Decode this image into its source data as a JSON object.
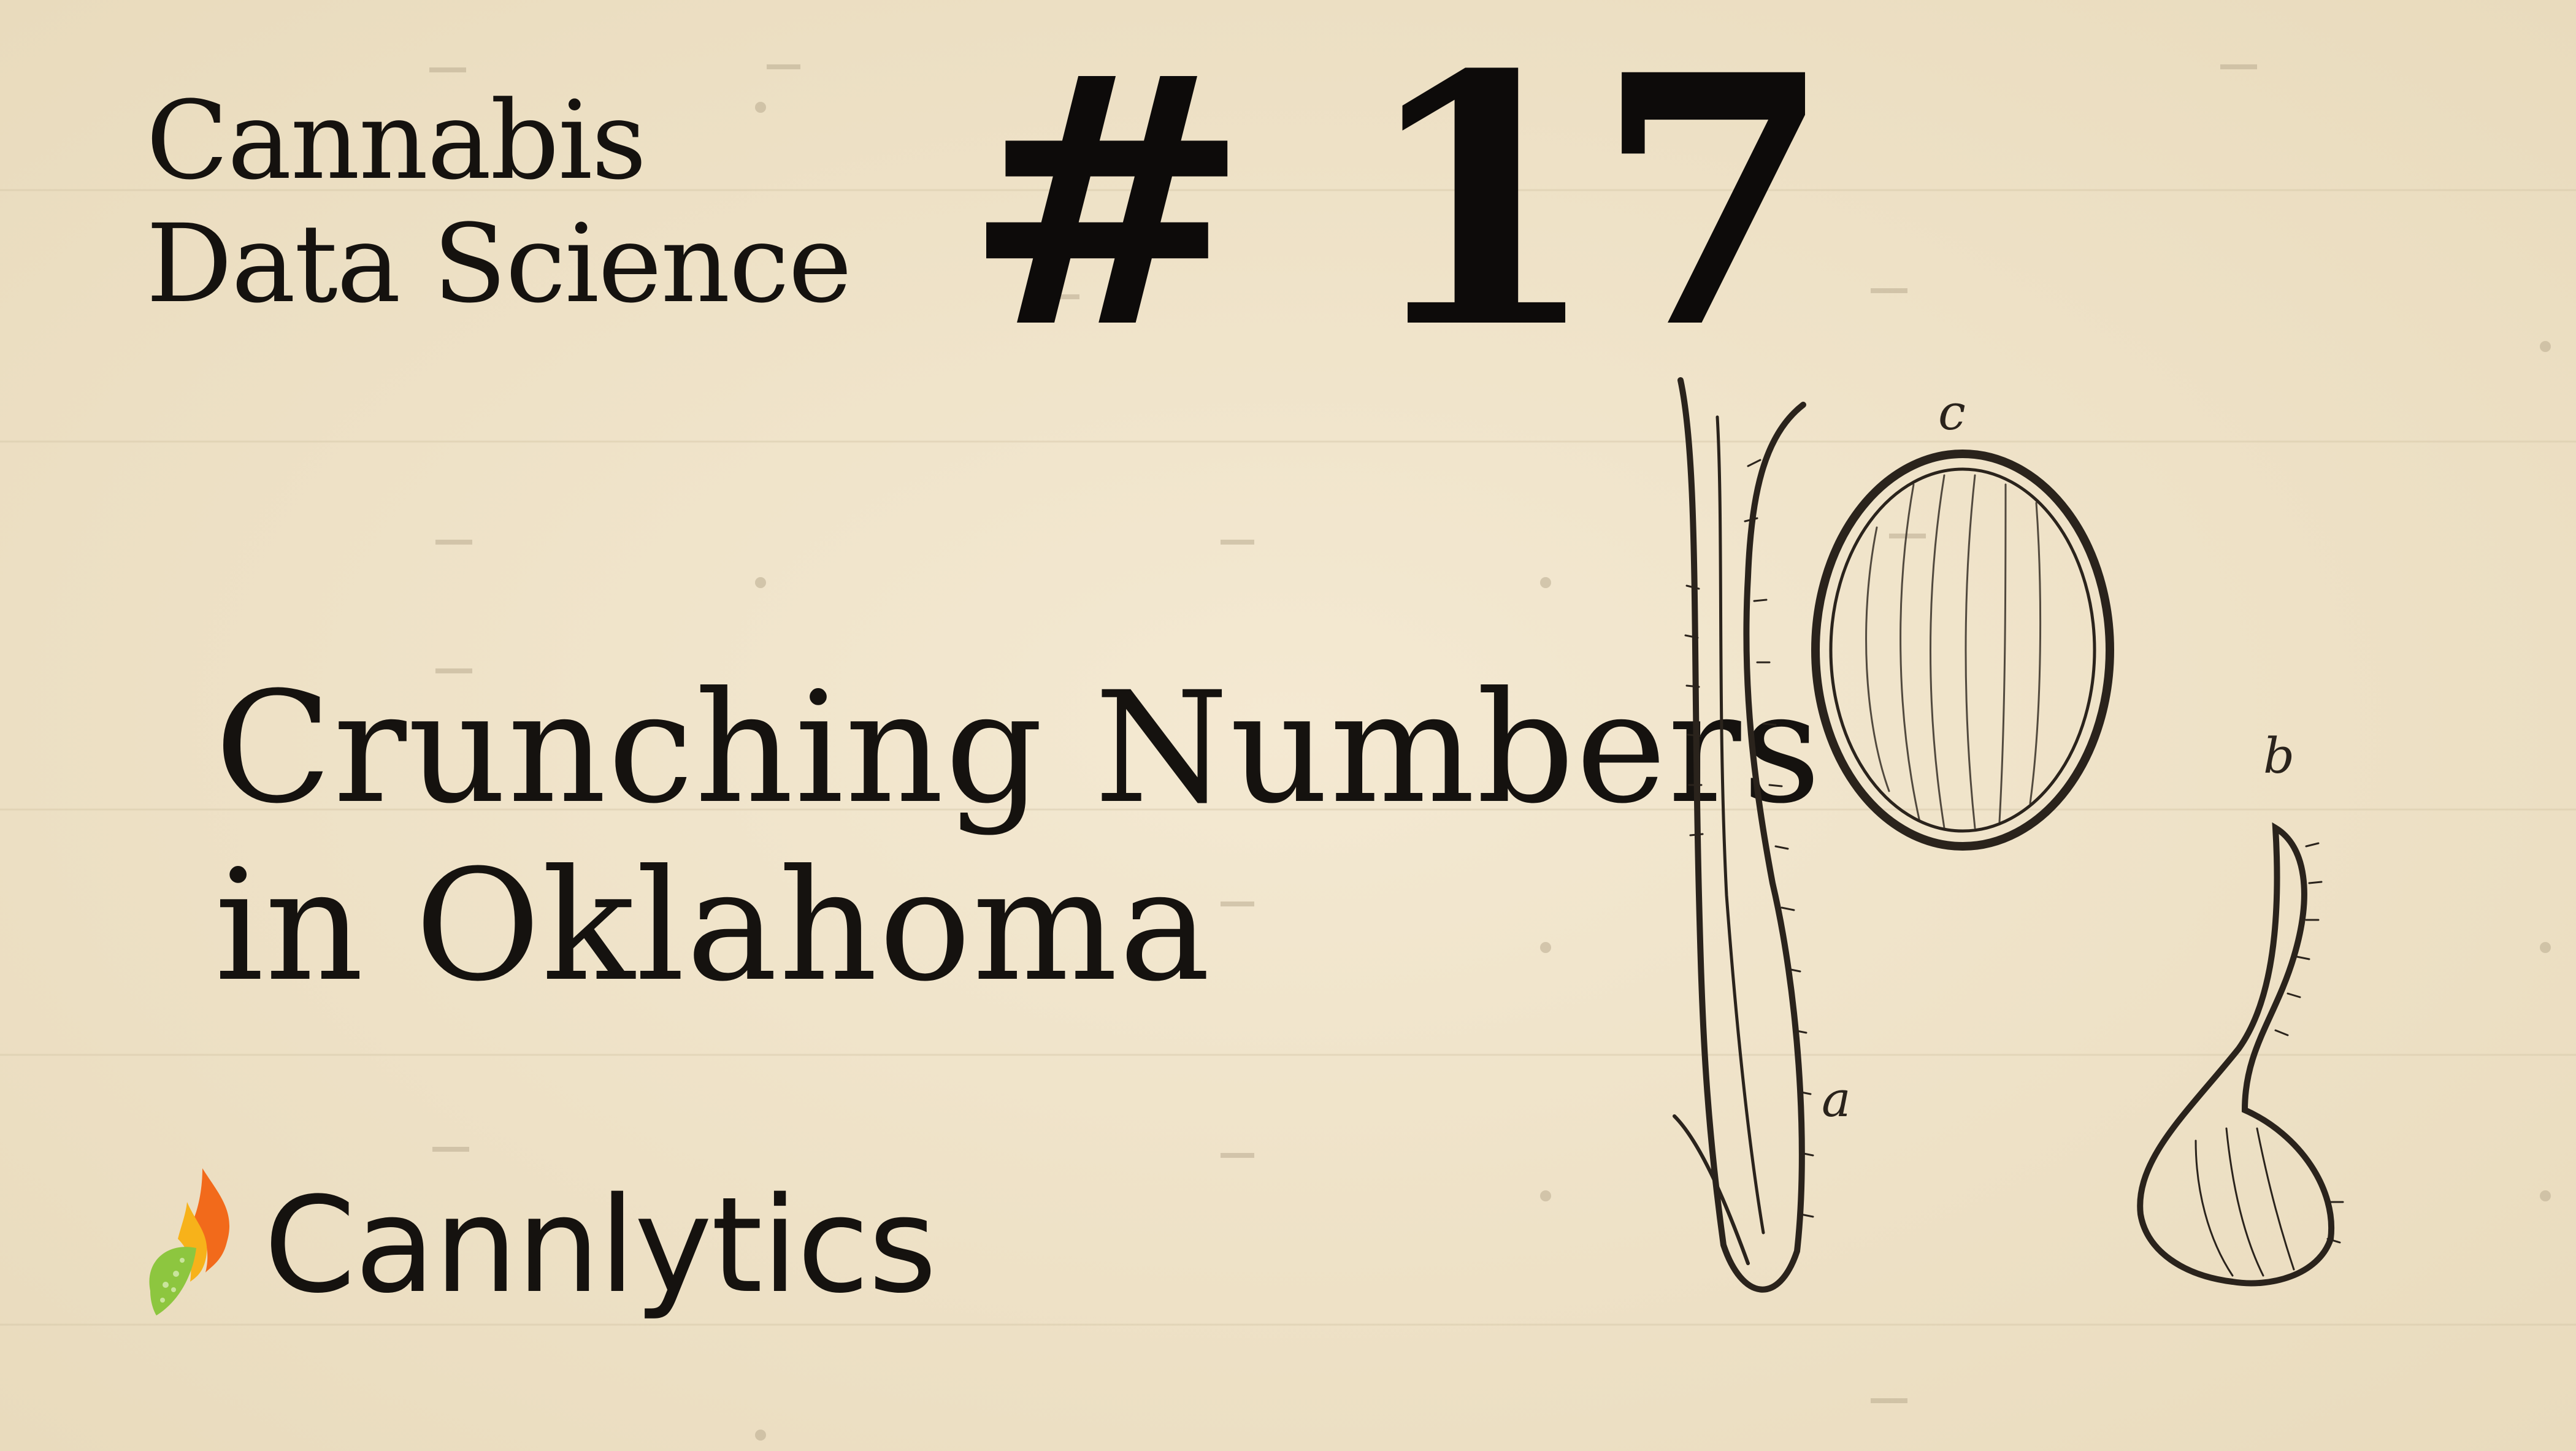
{
  "series": {
    "line1": "Cannabis",
    "line2": "Data Science"
  },
  "episode": {
    "number": "# 17",
    "title_line1": "Crunching Numbers",
    "title_line2": "in Oklahoma"
  },
  "brand": {
    "name": "Cannlytics",
    "logo_icon": "flame-leaf-icon"
  },
  "illustration": {
    "icon": "cannabis-seed-botanical-drawing",
    "label_a": "a",
    "label_b": "b",
    "label_c": "c"
  },
  "colors": {
    "paper": "#f1e5cc",
    "ink": "#15120f",
    "flame_orange": "#f26a1b",
    "flame_yellow": "#f7b21a",
    "leaf_green": "#8dc63f"
  }
}
